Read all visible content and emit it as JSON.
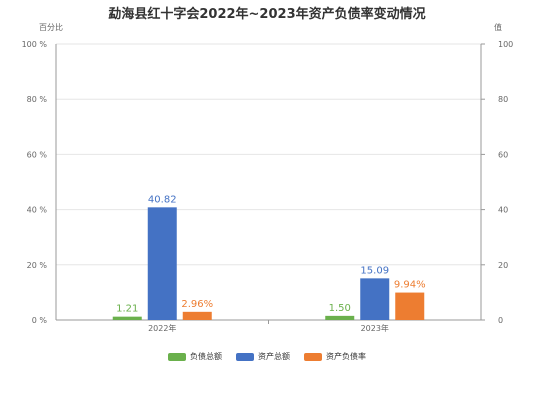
{
  "chart_data": {
    "type": "bar",
    "title": "勐海县红十字会2022年~2023年资产负债率变动情况",
    "categories": [
      "2022年",
      "2023年"
    ],
    "left_axis_label": "百分比",
    "right_axis_label": "值",
    "left_ticks": [
      "0 %",
      "20 %",
      "40 %",
      "60 %",
      "80 %",
      "100 %"
    ],
    "right_ticks": [
      "0",
      "20",
      "40",
      "60",
      "80",
      "100"
    ],
    "ylim": [
      0,
      100
    ],
    "grid": true,
    "legend_position": "bottom",
    "series": [
      {
        "name": "负债总额",
        "color": "#6ab04c",
        "axis": "right",
        "values": [
          1.21,
          1.5
        ],
        "labels": [
          "1.21",
          "1.50"
        ]
      },
      {
        "name": "资产总额",
        "color": "#4472c4",
        "axis": "right",
        "values": [
          40.82,
          15.09
        ],
        "labels": [
          "40.82",
          "15.09"
        ]
      },
      {
        "name": "资产负债率",
        "color": "#ed7d31",
        "axis": "left",
        "values": [
          2.96,
          9.94
        ],
        "labels": [
          "2.96%",
          "9.94%"
        ]
      }
    ]
  }
}
